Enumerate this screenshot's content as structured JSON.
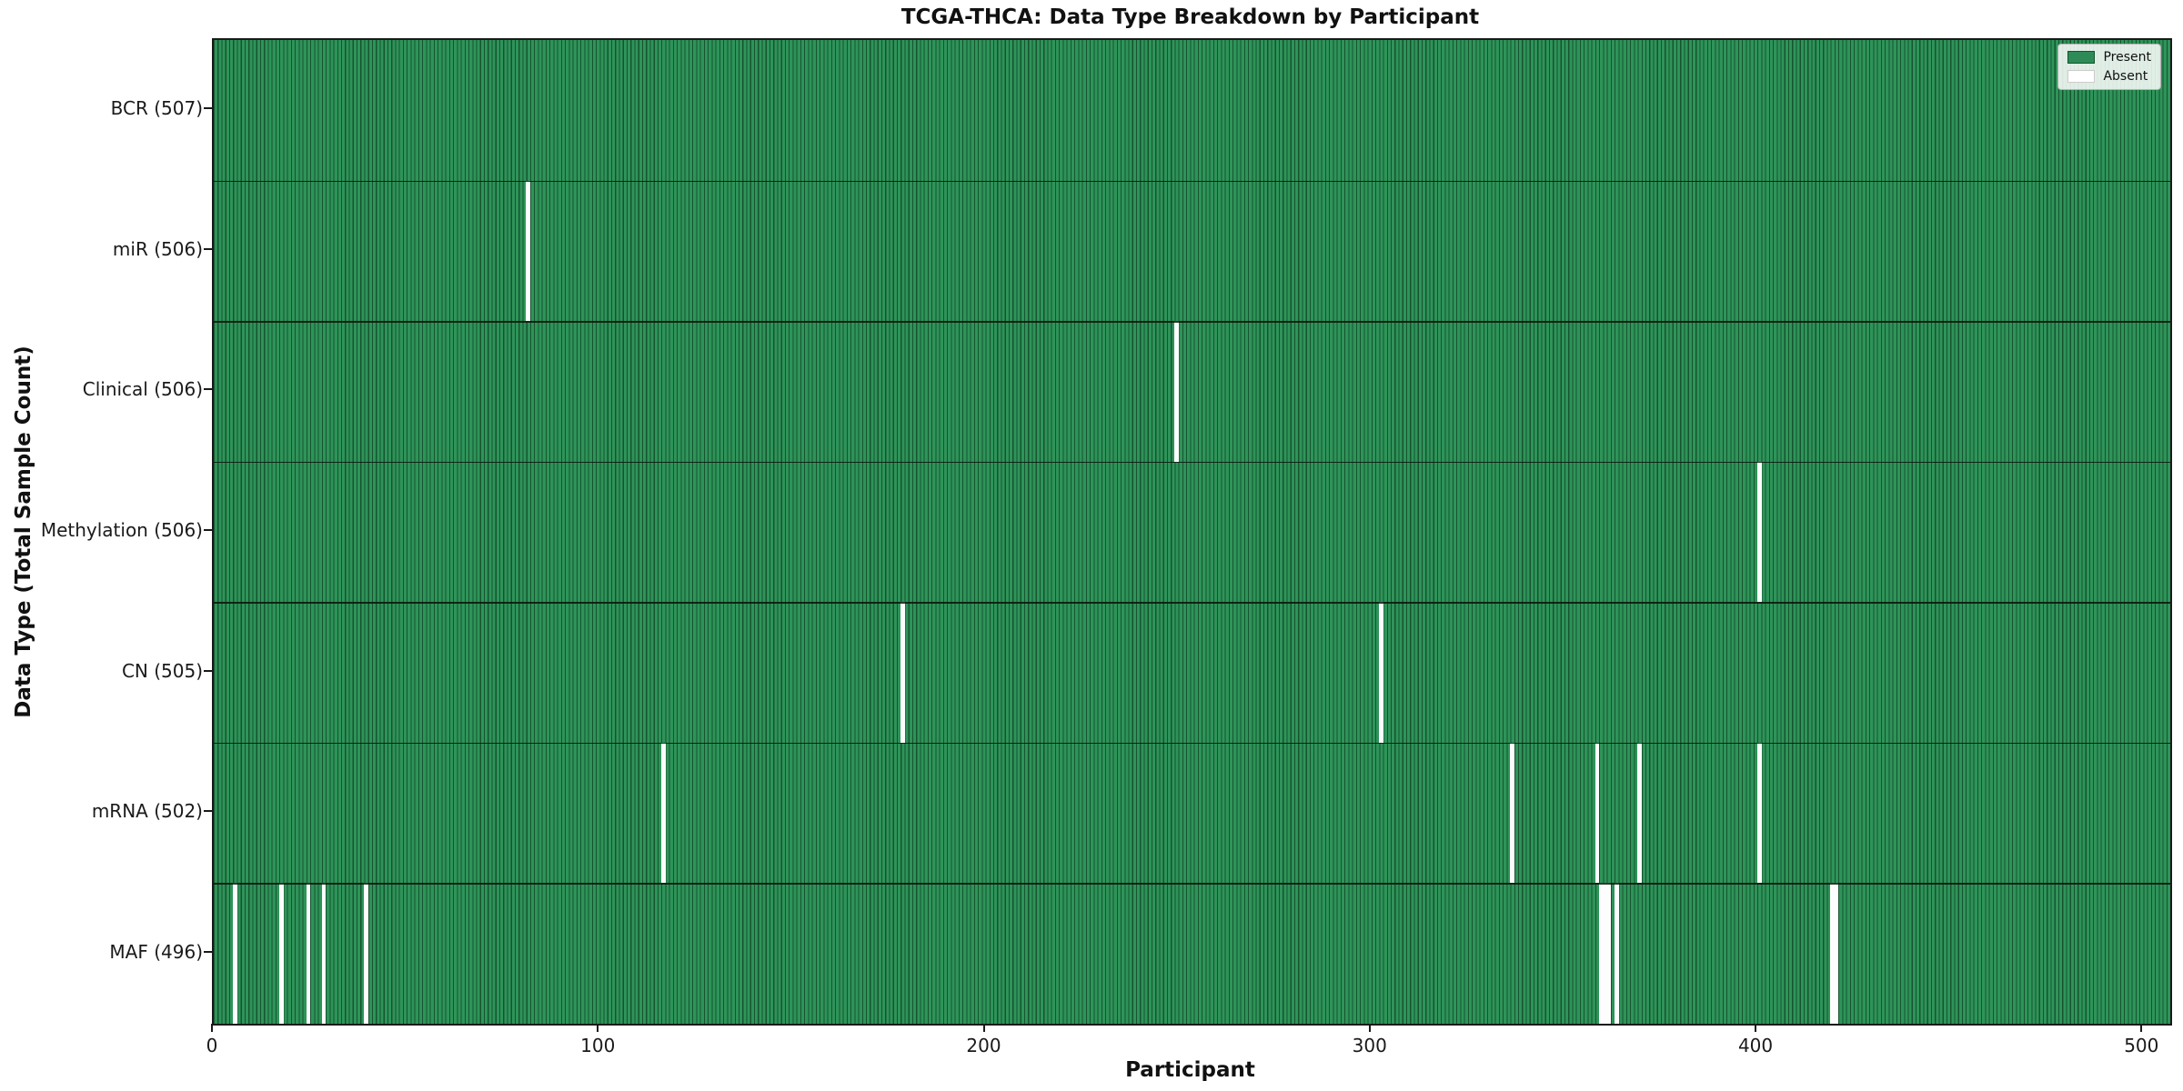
{
  "figure": {
    "title": "TCGA-THCA: Data Type Breakdown by Participant",
    "xlabel": "Participant",
    "ylabel": "Data Type (Total Sample Count)"
  },
  "legend": {
    "items": [
      {
        "label": "Present",
        "color": "#2e8b57",
        "edge": "#17532f"
      },
      {
        "label": "Absent",
        "color": "#ffffff",
        "edge": "#cccccc"
      }
    ],
    "position": "upper right"
  },
  "colors": {
    "present": "#2e8b57",
    "absent": "#ffffff",
    "bar_edge": "#17532f",
    "axis": "#1a1a1a",
    "background": "#ffffff"
  },
  "chart_data": {
    "type": "heatmap",
    "subtype": "presence-absence availability matrix",
    "title": "TCGA-THCA: Data Type Breakdown by Participant",
    "xlabel": "Participant",
    "ylabel": "Data Type (Total Sample Count)",
    "n_participants": 507,
    "x_ticks": [
      0,
      100,
      200,
      300,
      400,
      500
    ],
    "xlim": [
      0,
      507
    ],
    "grid": false,
    "legend_entries": [
      "Present",
      "Absent"
    ],
    "legend_position": "upper right",
    "rows": [
      {
        "label": "BCR (507)",
        "data_type": "BCR",
        "present_count": 507,
        "absent_count": 0,
        "absent_participants": []
      },
      {
        "label": "miR (506)",
        "data_type": "miR",
        "present_count": 506,
        "absent_count": 1,
        "absent_participants": [
          81
        ]
      },
      {
        "label": "Clinical (506)",
        "data_type": "Clinical",
        "present_count": 506,
        "absent_count": 1,
        "absent_participants": [
          249
        ]
      },
      {
        "label": "Methylation (506)",
        "data_type": "Methylation",
        "present_count": 506,
        "absent_count": 1,
        "absent_participants": [
          400
        ]
      },
      {
        "label": "CN (505)",
        "data_type": "CN",
        "present_count": 505,
        "absent_count": 2,
        "absent_participants": [
          178,
          302
        ]
      },
      {
        "label": "mRNA (502)",
        "data_type": "mRNA",
        "present_count": 502,
        "absent_count": 5,
        "absent_participants": [
          116,
          336,
          358,
          369,
          400
        ]
      },
      {
        "label": "MAF (496)",
        "data_type": "MAF",
        "present_count": 496,
        "absent_count": 11,
        "absent_participants": [
          5,
          17,
          24,
          28,
          39,
          359,
          360,
          361,
          363,
          419,
          420
        ]
      }
    ]
  }
}
